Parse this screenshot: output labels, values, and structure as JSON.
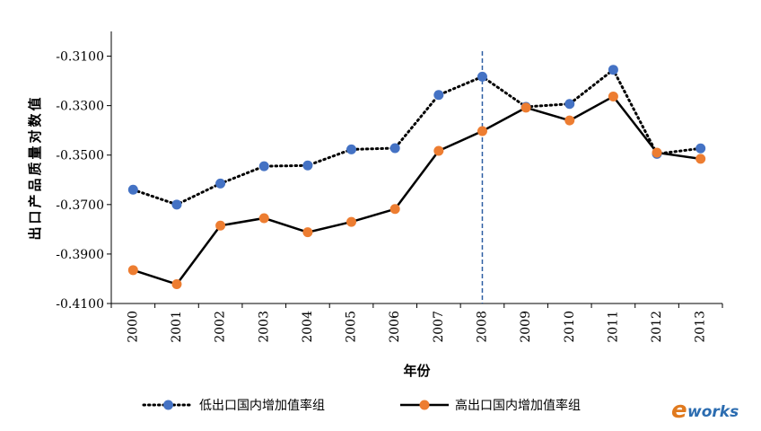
{
  "chart_data": {
    "type": "line",
    "title": "",
    "xlabel": "年份",
    "ylabel": "出口产品质量对数值",
    "categories": [
      "2000",
      "2001",
      "2002",
      "2003",
      "2004",
      "2005",
      "2006",
      "2007",
      "2008",
      "2009",
      "2010",
      "2011",
      "2012",
      "2013"
    ],
    "ylim": [
      -0.41,
      -0.3
    ],
    "yticks": [
      -0.31,
      -0.33,
      -0.35,
      -0.37,
      -0.39,
      -0.41
    ],
    "ytick_labels": [
      "-0.3100",
      "-0.3300",
      "-0.3500",
      "-0.3700",
      "-0.3900",
      "-0.4100"
    ],
    "reference_line": {
      "x": "2008",
      "style": "dashed",
      "color": "#2e5fa3"
    },
    "grid": false,
    "legend_position": "bottom",
    "series": [
      {
        "name": "低出口国内增加值率组",
        "line_style": "dotted",
        "line_color": "#000000",
        "marker_color": "#4472c4",
        "values": [
          -0.364,
          -0.37,
          -0.3615,
          -0.3545,
          -0.3542,
          -0.3477,
          -0.3472,
          -0.3257,
          -0.3183,
          -0.3305,
          -0.3293,
          -0.3155,
          -0.3495,
          -0.3473
        ]
      },
      {
        "name": "高出口国内增加值率组",
        "line_style": "solid",
        "line_color": "#000000",
        "marker_color": "#ed7d31",
        "values": [
          -0.3965,
          -0.4022,
          -0.3785,
          -0.3755,
          -0.3812,
          -0.377,
          -0.3718,
          -0.3483,
          -0.3403,
          -0.3308,
          -0.336,
          -0.3263,
          -0.349,
          -0.3515
        ]
      }
    ]
  },
  "watermark": {
    "prefix": "e",
    "text": "works"
  }
}
